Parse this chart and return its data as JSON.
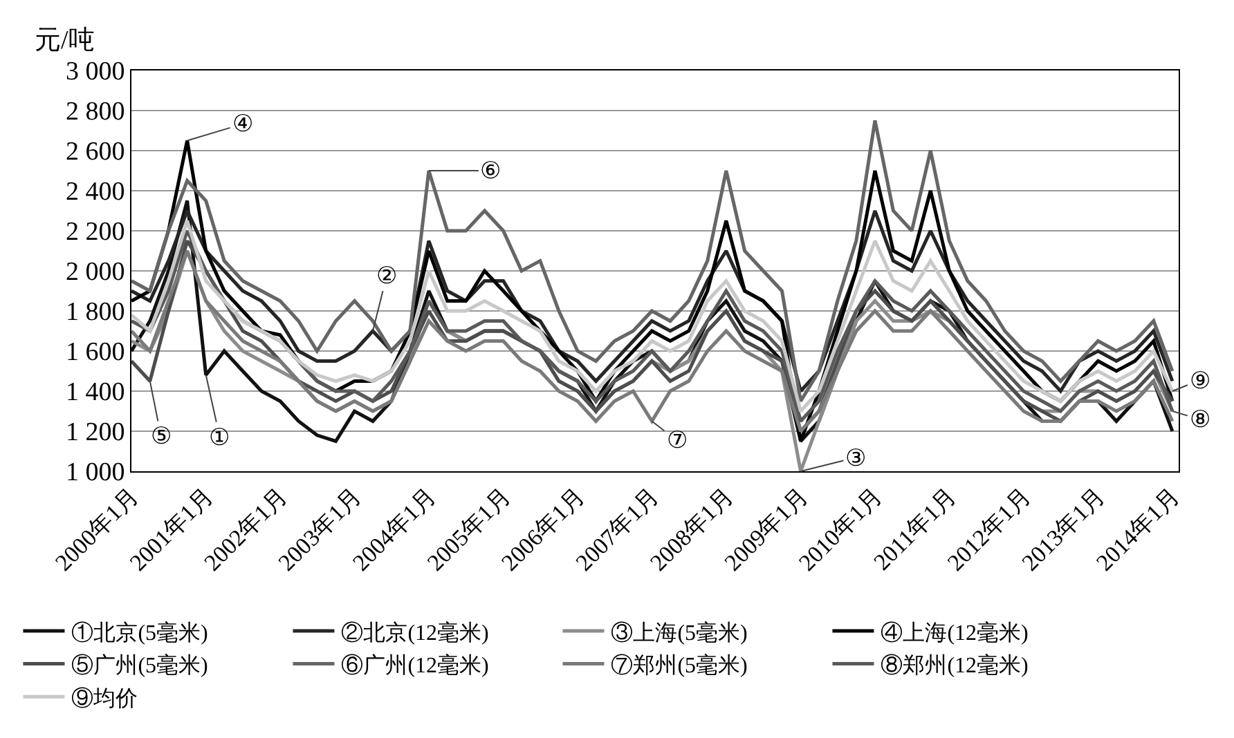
{
  "chart_data": {
    "type": "line",
    "ylabel": "元/吨",
    "grid": "y",
    "legend": "bottom",
    "marker": "none",
    "line_style": "solid",
    "x": [
      "2000-01",
      "2000-04",
      "2000-07",
      "2000-10",
      "2001-01",
      "2001-04",
      "2001-07",
      "2001-10",
      "2002-01",
      "2002-04",
      "2002-07",
      "2002-10",
      "2003-01",
      "2003-04",
      "2003-07",
      "2003-10",
      "2004-01",
      "2004-04",
      "2004-07",
      "2004-10",
      "2005-01",
      "2005-04",
      "2005-07",
      "2005-10",
      "2006-01",
      "2006-04",
      "2006-07",
      "2006-10",
      "2007-01",
      "2007-04",
      "2007-07",
      "2007-10",
      "2008-01",
      "2008-04",
      "2008-07",
      "2008-10",
      "2009-01",
      "2009-04",
      "2009-07",
      "2009-10",
      "2010-01",
      "2010-04",
      "2010-07",
      "2010-10",
      "2011-01",
      "2011-04",
      "2011-07",
      "2011-10",
      "2012-01",
      "2012-04",
      "2012-07",
      "2012-10",
      "2013-01",
      "2013-04",
      "2013-07",
      "2013-10",
      "2014-01"
    ],
    "xlim": [
      "2000-01",
      "2014-02"
    ],
    "xticks": [
      {
        "value": "2000-01",
        "label": "2000年1月"
      },
      {
        "value": "2001-01",
        "label": "2001年1月"
      },
      {
        "value": "2002-01",
        "label": "2002年1月"
      },
      {
        "value": "2003-01",
        "label": "2003年1月"
      },
      {
        "value": "2004-01",
        "label": "2004年1月"
      },
      {
        "value": "2005-01",
        "label": "2005年1月"
      },
      {
        "value": "2006-01",
        "label": "2006年1月"
      },
      {
        "value": "2007-01",
        "label": "2007年1月"
      },
      {
        "value": "2008-01",
        "label": "2008年1月"
      },
      {
        "value": "2009-01",
        "label": "2009年1月"
      },
      {
        "value": "2010-01",
        "label": "2010年1月"
      },
      {
        "value": "2011-01",
        "label": "2011年1月"
      },
      {
        "value": "2012-01",
        "label": "2012年1月"
      },
      {
        "value": "2013-01",
        "label": "2013年1月"
      },
      {
        "value": "2014-01",
        "label": "2014年1月"
      }
    ],
    "ylim": [
      1000,
      3000
    ],
    "yticks": [
      {
        "value": 1000,
        "label": "1 000"
      },
      {
        "value": 1200,
        "label": "1 200"
      },
      {
        "value": 1400,
        "label": "1 400"
      },
      {
        "value": 1600,
        "label": "1 600"
      },
      {
        "value": 1800,
        "label": "1 800"
      },
      {
        "value": 2000,
        "label": "2 000"
      },
      {
        "value": 2200,
        "label": "2 200"
      },
      {
        "value": 2400,
        "label": "2 400"
      },
      {
        "value": 2600,
        "label": "2 600"
      },
      {
        "value": 2800,
        "label": "2 800"
      },
      {
        "value": 3000,
        "label": "3 000"
      }
    ],
    "series": [
      {
        "name": "①北京(5毫米)",
        "color": "#111111",
        "values": [
          1600,
          1750,
          2000,
          2350,
          1480,
          1600,
          1500,
          1400,
          1350,
          1250,
          1180,
          1150,
          1300,
          1250,
          1350,
          1600,
          1900,
          1700,
          1650,
          1700,
          1700,
          1650,
          1600,
          1500,
          1450,
          1300,
          1450,
          1550,
          1600,
          1500,
          1550,
          1750,
          1850,
          1700,
          1650,
          1550,
          1150,
          1250,
          1500,
          1750,
          1950,
          1800,
          1750,
          1850,
          1800,
          1650,
          1550,
          1450,
          1350,
          1250,
          1250,
          1350,
          1350,
          1250,
          1350,
          1450,
          1200
        ]
      },
      {
        "name": "②北京(12毫米)",
        "color": "#262626",
        "values": [
          1900,
          1850,
          2050,
          2300,
          2100,
          2000,
          1900,
          1850,
          1750,
          1600,
          1550,
          1550,
          1600,
          1700,
          1600,
          1700,
          2150,
          1900,
          1850,
          1950,
          1950,
          1800,
          1750,
          1600,
          1550,
          1450,
          1550,
          1650,
          1750,
          1700,
          1750,
          1950,
          2100,
          1900,
          1850,
          1750,
          1400,
          1500,
          1750,
          2000,
          2300,
          2050,
          2000,
          2200,
          2000,
          1850,
          1750,
          1650,
          1550,
          1500,
          1400,
          1550,
          1600,
          1550,
          1600,
          1700,
          1450
        ]
      },
      {
        "name": "③上海(5毫米)",
        "color": "#8c8c8c",
        "values": [
          1650,
          1600,
          1800,
          2100,
          1850,
          1700,
          1600,
          1550,
          1500,
          1450,
          1350,
          1300,
          1350,
          1300,
          1350,
          1550,
          1850,
          1700,
          1650,
          1700,
          1700,
          1650,
          1600,
          1450,
          1400,
          1300,
          1400,
          1450,
          1550,
          1500,
          1550,
          1700,
          1800,
          1650,
          1600,
          1500,
          1000,
          1250,
          1500,
          1750,
          1850,
          1750,
          1750,
          1800,
          1750,
          1650,
          1550,
          1450,
          1350,
          1300,
          1300,
          1400,
          1400,
          1350,
          1400,
          1500,
          1300
        ]
      },
      {
        "name": "④上海(12毫米)",
        "color": "#000000",
        "values": [
          1850,
          1900,
          2200,
          2650,
          2100,
          1900,
          1800,
          1700,
          1680,
          1550,
          1450,
          1400,
          1450,
          1450,
          1500,
          1700,
          2100,
          1850,
          1850,
          2000,
          1900,
          1800,
          1700,
          1600,
          1500,
          1350,
          1500,
          1600,
          1700,
          1650,
          1700,
          1900,
          2250,
          1900,
          1850,
          1750,
          1150,
          1400,
          1700,
          2000,
          2500,
          2100,
          2050,
          2400,
          2000,
          1800,
          1700,
          1600,
          1500,
          1400,
          1350,
          1450,
          1550,
          1500,
          1550,
          1650,
          1350
        ]
      },
      {
        "name": "⑤广州(5毫米)",
        "color": "#4d4d4d",
        "values": [
          1550,
          1450,
          1800,
          2150,
          2000,
          1850,
          1700,
          1650,
          1550,
          1450,
          1400,
          1350,
          1400,
          1350,
          1400,
          1600,
          1800,
          1650,
          1650,
          1700,
          1700,
          1650,
          1600,
          1450,
          1400,
          1300,
          1400,
          1450,
          1550,
          1450,
          1500,
          1700,
          1800,
          1650,
          1600,
          1550,
          1200,
          1300,
          1550,
          1800,
          1900,
          1800,
          1750,
          1850,
          1750,
          1650,
          1550,
          1450,
          1350,
          1300,
          1250,
          1350,
          1400,
          1350,
          1400,
          1500,
          1350
        ]
      },
      {
        "name": "⑥广州(12毫米)",
        "color": "#666666",
        "values": [
          1950,
          1900,
          2200,
          2450,
          2350,
          2050,
          1950,
          1900,
          1850,
          1750,
          1600,
          1750,
          1850,
          1750,
          1600,
          1700,
          2500,
          2200,
          2200,
          2300,
          2200,
          2000,
          2050,
          1800,
          1600,
          1550,
          1650,
          1700,
          1800,
          1750,
          1850,
          2050,
          2500,
          2100,
          2000,
          1900,
          1350,
          1500,
          1850,
          2150,
          2750,
          2300,
          2200,
          2600,
          2150,
          1950,
          1850,
          1700,
          1600,
          1550,
          1450,
          1550,
          1650,
          1600,
          1650,
          1750,
          1500
        ]
      },
      {
        "name": "⑦郑州(5毫米)",
        "color": "#7a7a7a",
        "values": [
          1700,
          1600,
          1850,
          2100,
          1850,
          1750,
          1650,
          1600,
          1550,
          1450,
          1350,
          1300,
          1350,
          1300,
          1350,
          1550,
          1750,
          1650,
          1600,
          1650,
          1650,
          1550,
          1500,
          1400,
          1350,
          1250,
          1350,
          1400,
          1250,
          1400,
          1450,
          1600,
          1700,
          1600,
          1550,
          1500,
          1200,
          1300,
          1500,
          1700,
          1800,
          1700,
          1700,
          1800,
          1700,
          1600,
          1500,
          1400,
          1300,
          1250,
          1250,
          1350,
          1350,
          1300,
          1350,
          1450,
          1250
        ]
      },
      {
        "name": "⑧郑州(12毫米)",
        "color": "#5a5a5a",
        "values": [
          1750,
          1700,
          1900,
          2200,
          2000,
          1850,
          1750,
          1700,
          1650,
          1550,
          1450,
          1400,
          1400,
          1350,
          1450,
          1600,
          1850,
          1700,
          1700,
          1750,
          1750,
          1650,
          1600,
          1500,
          1450,
          1350,
          1450,
          1500,
          1600,
          1500,
          1600,
          1750,
          1900,
          1750,
          1700,
          1600,
          1250,
          1350,
          1600,
          1800,
          1950,
          1850,
          1800,
          1900,
          1800,
          1700,
          1600,
          1500,
          1400,
          1350,
          1300,
          1400,
          1450,
          1400,
          1450,
          1550,
          1300
        ]
      },
      {
        "name": "⑨均价",
        "color": "#c8c8c8",
        "values": [
          1780,
          1700,
          1950,
          2250,
          1950,
          1850,
          1750,
          1700,
          1650,
          1550,
          1480,
          1450,
          1480,
          1450,
          1500,
          1650,
          2000,
          1800,
          1800,
          1850,
          1800,
          1750,
          1700,
          1550,
          1500,
          1400,
          1500,
          1550,
          1650,
          1600,
          1650,
          1850,
          1950,
          1800,
          1750,
          1650,
          1300,
          1400,
          1650,
          1900,
          2150,
          1950,
          1900,
          2050,
          1900,
          1750,
          1650,
          1550,
          1450,
          1400,
          1350,
          1450,
          1500,
          1450,
          1500,
          1600,
          1400
        ]
      }
    ],
    "annotations": [
      {
        "text": "①",
        "x": "2001-01",
        "y": 1480
      },
      {
        "text": "②",
        "x": "2003-04",
        "y": 1700
      },
      {
        "text": "③",
        "x": "2009-01",
        "y": 1000
      },
      {
        "text": "④",
        "x": "2000-10",
        "y": 2650
      },
      {
        "text": "⑤",
        "x": "2000-04",
        "y": 1450
      },
      {
        "text": "⑥",
        "x": "2004-01",
        "y": 2500
      },
      {
        "text": "⑦",
        "x": "2007-01",
        "y": 1250
      },
      {
        "text": "⑧",
        "x": "2014-01",
        "y": 1300
      },
      {
        "text": "⑨",
        "x": "2014-01",
        "y": 1400
      }
    ]
  }
}
